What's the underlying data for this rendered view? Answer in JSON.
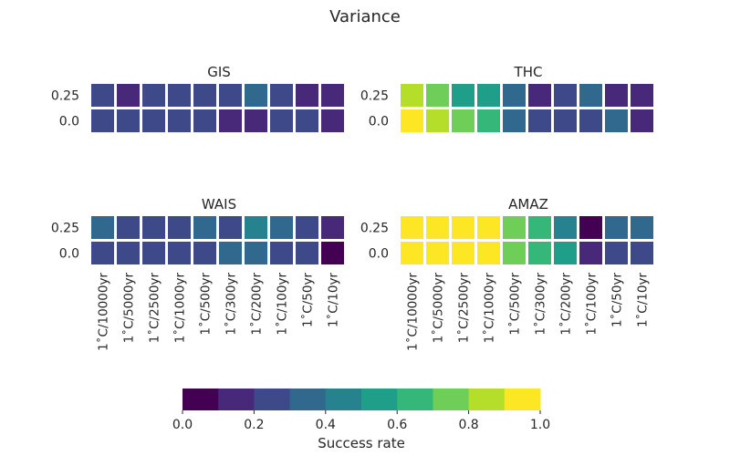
{
  "title": "Variance",
  "chart_data": {
    "type": "heatmap",
    "title": "Variance",
    "x_categories": [
      "1˚C/10000yr",
      "1˚C/5000yr",
      "1˚C/2500yr",
      "1˚C/1000yr",
      "1˚C/500yr",
      "1˚C/300yr",
      "1˚C/200yr",
      "1˚C/100yr",
      "1˚C/50yr",
      "1˚C/10yr"
    ],
    "y_categories": [
      "0.25",
      "0.0"
    ],
    "panels": [
      {
        "name": "GIS",
        "values": [
          [
            0.25,
            0.15,
            0.25,
            0.25,
            0.25,
            0.25,
            0.35,
            0.25,
            0.15,
            0.15
          ],
          [
            0.25,
            0.25,
            0.25,
            0.25,
            0.25,
            0.15,
            0.15,
            0.25,
            0.25,
            0.15
          ]
        ]
      },
      {
        "name": "THC",
        "values": [
          [
            0.85,
            0.75,
            0.55,
            0.55,
            0.35,
            0.15,
            0.25,
            0.35,
            0.15,
            0.15
          ],
          [
            0.95,
            0.85,
            0.75,
            0.65,
            0.35,
            0.25,
            0.25,
            0.25,
            0.35,
            0.15
          ]
        ]
      },
      {
        "name": "WAIS",
        "values": [
          [
            0.35,
            0.25,
            0.25,
            0.25,
            0.35,
            0.25,
            0.45,
            0.35,
            0.25,
            0.15
          ],
          [
            0.25,
            0.25,
            0.25,
            0.25,
            0.25,
            0.35,
            0.35,
            0.25,
            0.25,
            0.05
          ]
        ]
      },
      {
        "name": "AMAZ",
        "values": [
          [
            0.95,
            0.95,
            0.95,
            0.95,
            0.75,
            0.65,
            0.45,
            0.05,
            0.35,
            0.35
          ],
          [
            0.95,
            0.95,
            0.95,
            0.95,
            0.75,
            0.65,
            0.55,
            0.15,
            0.25,
            0.25
          ]
        ]
      }
    ],
    "colorbar": {
      "label": "Success rate",
      "ticks": [
        "0.0",
        "0.2",
        "0.4",
        "0.6",
        "0.8",
        "1.0"
      ],
      "range": [
        0,
        1
      ],
      "bins": 10,
      "colors": [
        "#440154",
        "#482878",
        "#3e4989",
        "#31688e",
        "#26828e",
        "#1f9e89",
        "#35b779",
        "#6ece58",
        "#b5de2b",
        "#fde725"
      ]
    }
  }
}
